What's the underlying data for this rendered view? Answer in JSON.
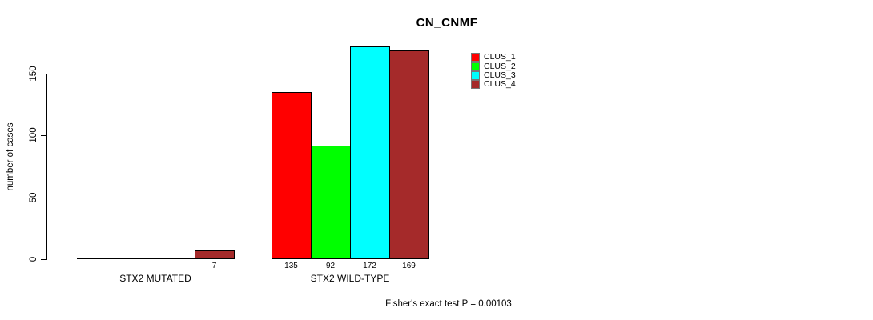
{
  "chart_data": {
    "type": "bar",
    "title": "CN_CNMF",
    "xlabel": "",
    "ylabel": "number of cases",
    "ylim": [
      0,
      150
    ],
    "yticks": [
      0,
      50,
      100,
      150
    ],
    "grid": false,
    "legend_position": "top-right",
    "categories": [
      "STX2 MUTATED",
      "STX2 WILD-TYPE"
    ],
    "series": [
      {
        "name": "CLUS_1",
        "color": "#FF0000",
        "values": [
          0,
          135
        ]
      },
      {
        "name": "CLUS_2",
        "color": "#00FF00",
        "values": [
          0,
          92
        ]
      },
      {
        "name": "CLUS_3",
        "color": "#00FFFF",
        "values": [
          0,
          172
        ]
      },
      {
        "name": "CLUS_4",
        "color": "#A52A2A",
        "values": [
          7,
          169
        ]
      }
    ],
    "groups": [
      {
        "label": "STX2 MUTATED",
        "values": [
          0,
          0,
          0,
          7
        ],
        "value_labels": [
          "",
          "",
          "",
          "7"
        ]
      },
      {
        "label": "STX2 WILD-TYPE",
        "values": [
          135,
          92,
          172,
          169
        ],
        "value_labels": [
          "135",
          "92",
          "172",
          "169"
        ]
      }
    ],
    "annotation": "Fisher's exact test P = 0.00103"
  }
}
